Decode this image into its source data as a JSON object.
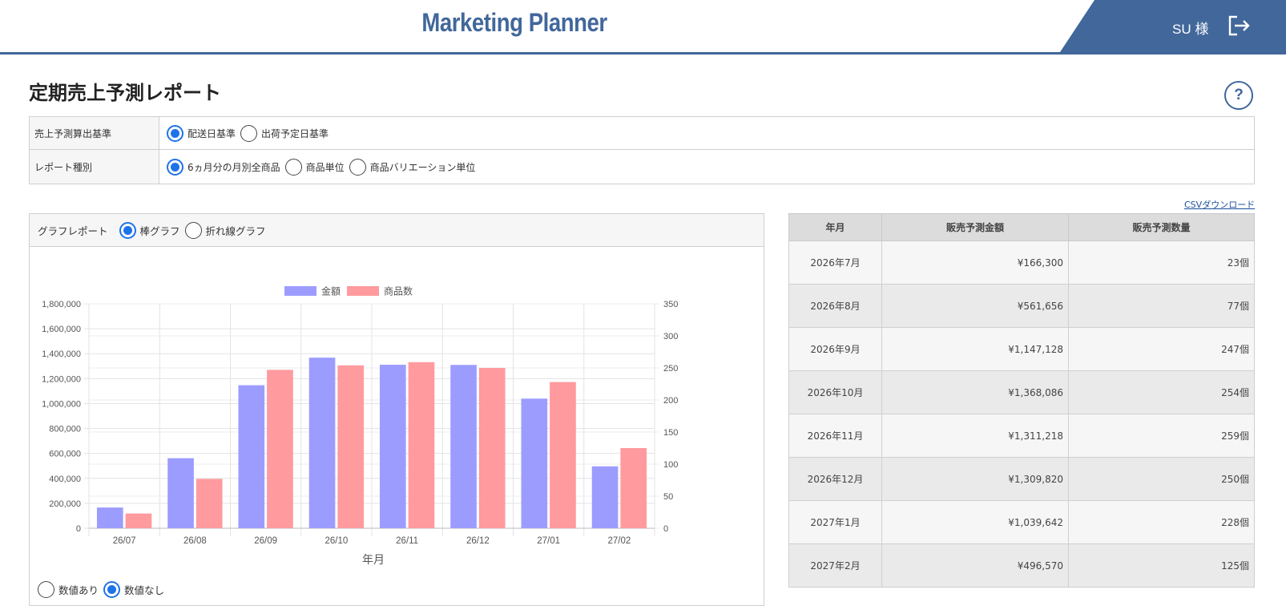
{
  "header": {
    "brand": "Marketing Planner",
    "user": "SU 様",
    "logout_icon": "logout-icon"
  },
  "page": {
    "title": "定期売上予測レポート",
    "help": "?"
  },
  "settings": {
    "basis": {
      "label": "売上予測算出基準",
      "options": [
        "配送日基準",
        "出荷予定日基準"
      ],
      "selected": 0
    },
    "report_type": {
      "label": "レポート種別",
      "options": [
        "6ヵ月分の月別全商品",
        "商品単位",
        "商品バリエーション単位"
      ],
      "selected": 0
    }
  },
  "csv_link": "CSVダウンロード",
  "chart_panel": {
    "label": "グラフレポート",
    "types": [
      "棒グラフ",
      "折れ線グラフ"
    ],
    "selected_type": 0,
    "value_toggle": [
      "数値あり",
      "数値なし"
    ],
    "value_toggle_selected": 1
  },
  "chart_data": {
    "type": "bar",
    "categories": [
      "26/07",
      "26/08",
      "26/09",
      "26/10",
      "26/11",
      "26/12",
      "27/01",
      "27/02"
    ],
    "series": [
      {
        "name": "金額",
        "color": "#9c9cff",
        "axis": "left",
        "values": [
          166300,
          561656,
          1147128,
          1368086,
          1311218,
          1309820,
          1039642,
          496570
        ]
      },
      {
        "name": "商品数",
        "color": "#ff9a9e",
        "axis": "right",
        "values": [
          23,
          77,
          247,
          254,
          259,
          250,
          228,
          125
        ]
      }
    ],
    "xlabel": "年月",
    "ylim_left": [
      0,
      1800000
    ],
    "yticks_left": [
      "1,800,000",
      "1,600,000",
      "1,400,000",
      "1,200,000",
      "1,000,000",
      "800,000",
      "600,000",
      "400,000",
      "200,000",
      "0"
    ],
    "ylim_right": [
      0,
      350
    ],
    "yticks_right": [
      "350",
      "300",
      "250",
      "200",
      "150",
      "100",
      "50",
      "0"
    ],
    "legend": "top-center",
    "grid": true
  },
  "table": {
    "headers": [
      "年月",
      "販売予測金額",
      "販売予測数量"
    ],
    "rows": [
      [
        "2026年7月",
        "¥166,300",
        "23個"
      ],
      [
        "2026年8月",
        "¥561,656",
        "77個"
      ],
      [
        "2026年9月",
        "¥1,147,128",
        "247個"
      ],
      [
        "2026年10月",
        "¥1,368,086",
        "254個"
      ],
      [
        "2026年11月",
        "¥1,311,218",
        "259個"
      ],
      [
        "2026年12月",
        "¥1,309,820",
        "250個"
      ],
      [
        "2027年1月",
        "¥1,039,642",
        "228個"
      ],
      [
        "2027年2月",
        "¥496,570",
        "125個"
      ]
    ]
  }
}
